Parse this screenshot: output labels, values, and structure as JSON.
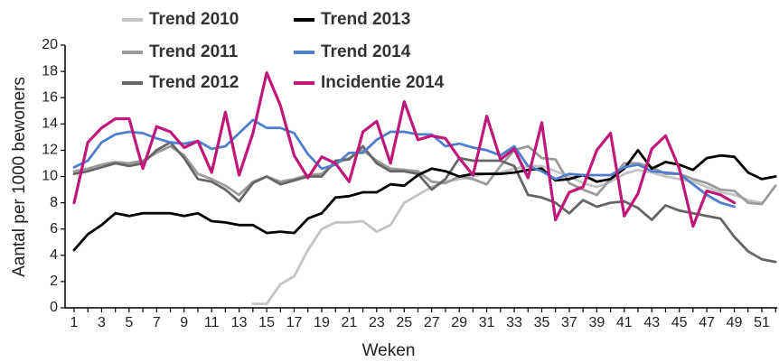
{
  "chart_data": {
    "type": "line",
    "x_label": "Weken",
    "y_label": "Aantal per 1000 bewoners",
    "categories": [
      1,
      null,
      3,
      null,
      5,
      null,
      7,
      null,
      9,
      null,
      11,
      null,
      13,
      null,
      15,
      null,
      17,
      null,
      19,
      null,
      21,
      null,
      23,
      null,
      25,
      null,
      27,
      null,
      29,
      null,
      31,
      null,
      33,
      null,
      35,
      null,
      37,
      null,
      39,
      null,
      41,
      null,
      43,
      null,
      45,
      null,
      47,
      null,
      49,
      null,
      51,
      null
    ],
    "ylim": [
      0,
      20
    ],
    "yticks": [
      0,
      2,
      4,
      6,
      8,
      10,
      12,
      14,
      16,
      18,
      20
    ],
    "legend": "top",
    "series": [
      {
        "name": "Trend 2010",
        "color": "#c4c4c4",
        "values": [
          null,
          null,
          null,
          null,
          null,
          null,
          null,
          null,
          null,
          null,
          null,
          null,
          null,
          0.3,
          0.3,
          1.8,
          2.4,
          4.4,
          6.0,
          6.5,
          6.5,
          6.6,
          5.8,
          6.3,
          8.0,
          8.6,
          9.2,
          9.6,
          9.8,
          10.0,
          10.2,
          10.3,
          10.6,
          10.8,
          10.8,
          10.4,
          10.0,
          9.5,
          9.2,
          9.6,
          10.2,
          10.5,
          10.3,
          10.0,
          9.8,
          9.6,
          9.2,
          8.8,
          8.6,
          8.2,
          8.0,
          null
        ]
      },
      {
        "name": "Trend 2011",
        "color": "#9b9b9b",
        "values": [
          10.4,
          10.6,
          10.9,
          11.1,
          11.0,
          11.2,
          11.8,
          12.3,
          11.6,
          10.2,
          9.8,
          9.3,
          8.6,
          9.6,
          10.0,
          9.6,
          9.8,
          10.1,
          10.2,
          11.0,
          11.4,
          12.0,
          11.2,
          10.6,
          10.5,
          10.4,
          9.6,
          9.5,
          10.0,
          9.8,
          9.4,
          10.8,
          12.0,
          12.3,
          11.4,
          11.3,
          9.5,
          9.0,
          8.6,
          9.8,
          11.0,
          11.0,
          10.7,
          10.2,
          10.2,
          9.8,
          9.5,
          9.0,
          8.9,
          8.0,
          7.9,
          9.3
        ]
      },
      {
        "name": "Trend 2012",
        "color": "#666666",
        "values": [
          10.2,
          10.4,
          10.7,
          11.0,
          10.8,
          11.0,
          12.0,
          12.6,
          11.4,
          9.8,
          9.6,
          9.0,
          8.1,
          9.5,
          10.0,
          9.4,
          9.7,
          10.0,
          10.0,
          11.2,
          11.3,
          12.3,
          11.0,
          10.4,
          10.4,
          10.2,
          9.0,
          9.8,
          11.4,
          11.2,
          11.2,
          11.2,
          10.8,
          8.6,
          8.4,
          8.0,
          7.2,
          8.2,
          7.7,
          8.0,
          8.1,
          7.6,
          6.7,
          7.8,
          7.4,
          7.2,
          7.0,
          6.8,
          5.4,
          4.3,
          3.7,
          3.5
        ]
      },
      {
        "name": "Trend 2013",
        "color": "#000000",
        "values": [
          4.4,
          5.6,
          6.3,
          7.2,
          7.0,
          7.2,
          7.2,
          7.2,
          7.0,
          7.2,
          6.6,
          6.5,
          6.3,
          6.3,
          5.7,
          5.8,
          5.7,
          6.8,
          7.2,
          8.4,
          8.5,
          8.8,
          8.8,
          9.4,
          9.3,
          10.1,
          10.6,
          10.4,
          10.0,
          10.2,
          10.2,
          10.2,
          10.3,
          10.5,
          10.6,
          9.7,
          9.8,
          10.1,
          9.6,
          9.8,
          10.6,
          12.0,
          10.6,
          11.1,
          10.9,
          10.5,
          11.4,
          11.6,
          11.5,
          10.3,
          9.8,
          10.0
        ]
      },
      {
        "name": "Trend 2014",
        "color": "#4f7fcc",
        "values": [
          10.7,
          11.2,
          12.6,
          13.2,
          13.4,
          13.3,
          12.9,
          12.6,
          12.5,
          12.7,
          12.1,
          12.3,
          13.3,
          14.3,
          13.7,
          13.7,
          13.3,
          11.7,
          10.6,
          10.9,
          11.8,
          11.8,
          12.8,
          13.4,
          13.4,
          13.2,
          13.2,
          12.3,
          12.5,
          12.2,
          12.0,
          11.6,
          12.3,
          10.8,
          10.4,
          9.8,
          10.2,
          10.1,
          10.1,
          10.1,
          10.7,
          10.9,
          10.4,
          10.3,
          10.2,
          9.4,
          8.6,
          8.0,
          7.7,
          null,
          null,
          null
        ]
      },
      {
        "name": "Incidentie 2014",
        "color": "#c0187a",
        "values": [
          8.0,
          12.6,
          13.7,
          14.4,
          14.4,
          10.6,
          13.8,
          13.4,
          12.2,
          12.7,
          10.3,
          14.9,
          10.1,
          13.3,
          17.9,
          15.4,
          11.6,
          9.9,
          11.5,
          11.0,
          9.6,
          13.4,
          14.2,
          11.0,
          15.7,
          12.8,
          13.1,
          12.9,
          11.4,
          10.1,
          14.6,
          11.3,
          12.1,
          9.9,
          14.1,
          6.7,
          8.8,
          9.2,
          12.0,
          13.3,
          7.0,
          8.7,
          12.1,
          13.1,
          10.6,
          6.2,
          8.9,
          8.6,
          8.0,
          null,
          null,
          null
        ]
      }
    ]
  }
}
